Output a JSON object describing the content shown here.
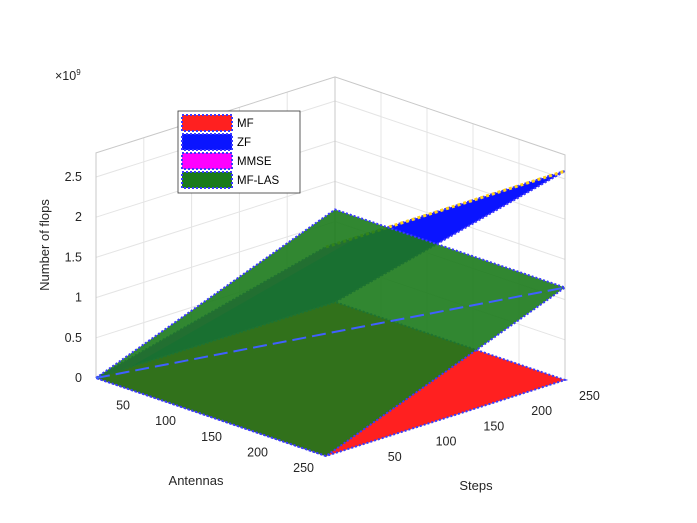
{
  "chart_data": {
    "type": "surface3d",
    "title": "",
    "xlabel": "Steps",
    "ylabel": "Antennas",
    "zlabel": "Number of flops",
    "z_exponent_label": "×10",
    "z_exponent": "9",
    "xlim": [
      0,
      250
    ],
    "ylim": [
      0,
      250
    ],
    "zlim": [
      0,
      2.8
    ],
    "x_ticks": [
      50,
      100,
      150,
      200,
      250
    ],
    "y_ticks": [
      50,
      100,
      150,
      200,
      250
    ],
    "z_ticks": [
      0,
      0.5,
      1,
      1.5,
      2,
      2.5
    ],
    "x_tick_labels": [
      "50",
      "100",
      "150",
      "200",
      "250"
    ],
    "y_tick_labels": [
      "50",
      "100",
      "150",
      "200",
      "250"
    ],
    "z_tick_labels": [
      "0",
      "0.5",
      "1",
      "1.5",
      "2",
      "2.5"
    ],
    "grid": true,
    "legend_position": "top-left",
    "series": [
      {
        "name": "MF",
        "color": "#ff2020",
        "corners": [
          [
            0,
            0,
            0
          ],
          [
            250,
            0,
            0
          ],
          [
            250,
            250,
            0
          ],
          [
            0,
            250,
            0
          ]
        ]
      },
      {
        "name": "ZF",
        "color": "#0a14ff",
        "corners": [
          [
            0,
            0,
            0
          ],
          [
            250,
            0,
            0
          ],
          [
            250,
            250,
            2.6
          ],
          [
            0,
            250,
            2.6
          ]
        ]
      },
      {
        "name": "MMSE",
        "color": "#ff00ff",
        "corners": [
          [
            0,
            0,
            0
          ],
          [
            250,
            0,
            0
          ],
          [
            250,
            250,
            2.6
          ],
          [
            0,
            250,
            2.6
          ]
        ]
      },
      {
        "name": "MF-LAS",
        "color": "#1b7a1b",
        "corners": [
          [
            0,
            0,
            0
          ],
          [
            250,
            0,
            1.15
          ],
          [
            250,
            250,
            1.15
          ],
          [
            0,
            250,
            0
          ]
        ]
      }
    ]
  }
}
